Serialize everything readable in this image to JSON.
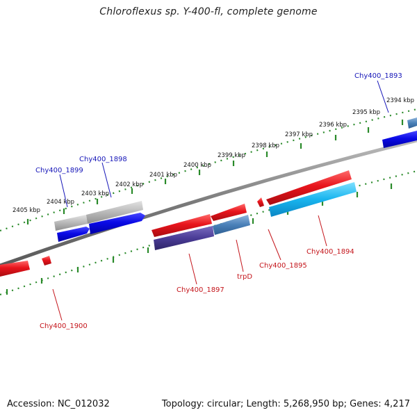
{
  "title": "Chloroflexus sp. Y-400-fl, complete genome",
  "footer": {
    "accession": "Accession: NC_012032",
    "summary": "Topology: circular; Length: 5,268,950 bp; Genes: 4,217"
  },
  "colors": {
    "forward_label": "#1515b8",
    "reverse_label": "#c4141a",
    "tick": "#2a8a2a",
    "backbone": "#777777"
  },
  "ruler_labels": [
    "2405 kbp",
    "2404 kbp",
    "2403 kbp",
    "2402 kbp",
    "2401 kbp",
    "2400 kbp",
    "2399 kbp",
    "2398 kbp",
    "2397 kbp",
    "2396 kbp",
    "2395 kbp",
    "2394 kbp"
  ],
  "genes": {
    "g1893": "Chy400_1893",
    "g1894": "Chy400_1894",
    "g1895": "Chy400_1895",
    "trpD": "trpD",
    "g1897": "Chy400_1897",
    "g1898": "Chy400_1898",
    "g1899": "Chy400_1899",
    "g1900": "Chy400_1900"
  }
}
